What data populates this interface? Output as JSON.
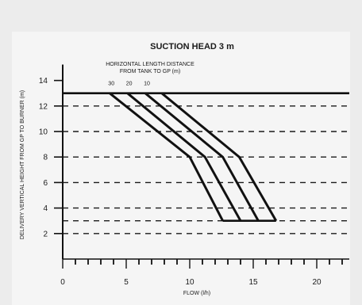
{
  "chart_data": {
    "type": "line",
    "title": "SUCTION HEAD 3 m",
    "subtitle_lines": [
      "HORIZONTAL LENGTH DISTANCE",
      "FROM TANK TO GP (m)"
    ],
    "xlabel": "FLOW (l/h)",
    "ylabel": "DELIVERY VERTICAL HEIGHT FROM GP TO BURNER (m)",
    "xlim": [
      0,
      22
    ],
    "ylim": [
      0,
      15
    ],
    "x_ticks": [
      0,
      5,
      10,
      15,
      20
    ],
    "y_ticks": [
      2,
      4,
      6,
      8,
      10,
      12,
      14
    ],
    "dashed_grid_y": [
      2,
      3,
      4,
      6,
      8,
      10,
      12
    ],
    "reference_line_y": 13,
    "series": [
      {
        "name": "30",
        "points": [
          [
            3.7,
            13
          ],
          [
            10.0,
            8.0
          ],
          [
            12.6,
            3.0
          ]
        ]
      },
      {
        "name": "20",
        "points": [
          [
            5.1,
            13
          ],
          [
            11.2,
            8.0
          ],
          [
            14.0,
            3.0
          ]
        ]
      },
      {
        "name": "10",
        "points": [
          [
            6.5,
            13
          ],
          [
            12.6,
            8.0
          ],
          [
            15.4,
            3.0
          ]
        ]
      },
      {
        "name": "",
        "points": [
          [
            7.8,
            13
          ],
          [
            13.9,
            8.0
          ],
          [
            16.8,
            3.0
          ]
        ]
      }
    ]
  }
}
